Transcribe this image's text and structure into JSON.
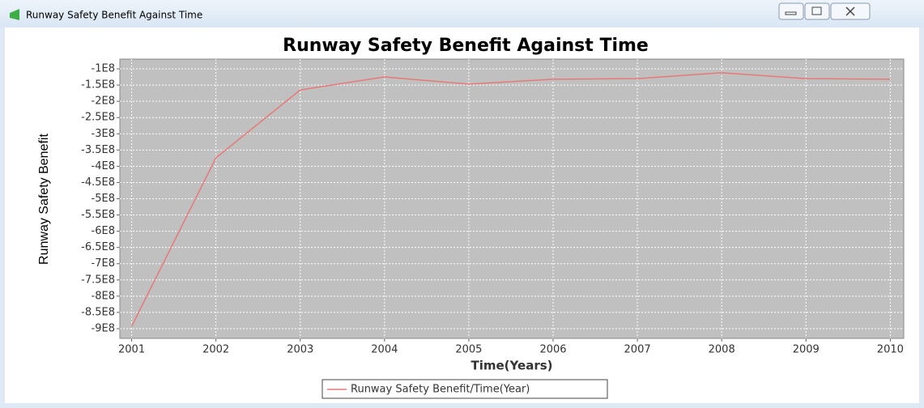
{
  "window": {
    "title": "Runway Safety Benefit Against Time"
  },
  "chart_data": {
    "type": "line",
    "title": "Runway Safety Benefit Against Time",
    "x_label": "Time(Years)",
    "y_label": "Runway Safety Benefit",
    "x": [
      2001,
      2002,
      2003,
      2004,
      2005,
      2006,
      2007,
      2008,
      2009,
      2010
    ],
    "series": [
      {
        "name": "Runway Safety Benefit/Time(Year)",
        "color": "#e87878",
        "values": [
          -893000000,
          -374000000,
          -165000000,
          -125000000,
          -147000000,
          -132000000,
          -130000000,
          -112000000,
          -130000000,
          -132000000
        ]
      }
    ],
    "xlim": [
      2000.86,
      2010.16
    ],
    "xticks": [
      2001,
      2002,
      2003,
      2004,
      2005,
      2006,
      2007,
      2008,
      2009,
      2010
    ],
    "ylim": [
      -930000000,
      -70000000
    ],
    "yticks": [
      {
        "value": -100000000,
        "label": "-1E8"
      },
      {
        "value": -150000000,
        "label": "-1.5E8"
      },
      {
        "value": -200000000,
        "label": "-2E8"
      },
      {
        "value": -250000000,
        "label": "-2.5E8"
      },
      {
        "value": -300000000,
        "label": "-3E8"
      },
      {
        "value": -350000000,
        "label": "-3.5E8"
      },
      {
        "value": -400000000,
        "label": "-4E8"
      },
      {
        "value": -450000000,
        "label": "-4.5E8"
      },
      {
        "value": -500000000,
        "label": "-5E8"
      },
      {
        "value": -550000000,
        "label": "-5.5E8"
      },
      {
        "value": -600000000,
        "label": "-6E8"
      },
      {
        "value": -650000000,
        "label": "-6.5E8"
      },
      {
        "value": -700000000,
        "label": "-7E8"
      },
      {
        "value": -750000000,
        "label": "-7.5E8"
      },
      {
        "value": -800000000,
        "label": "-8E8"
      },
      {
        "value": -850000000,
        "label": "-8.5E8"
      },
      {
        "value": -900000000,
        "label": "-9E8"
      }
    ],
    "grid": true,
    "legend": "bottom"
  }
}
